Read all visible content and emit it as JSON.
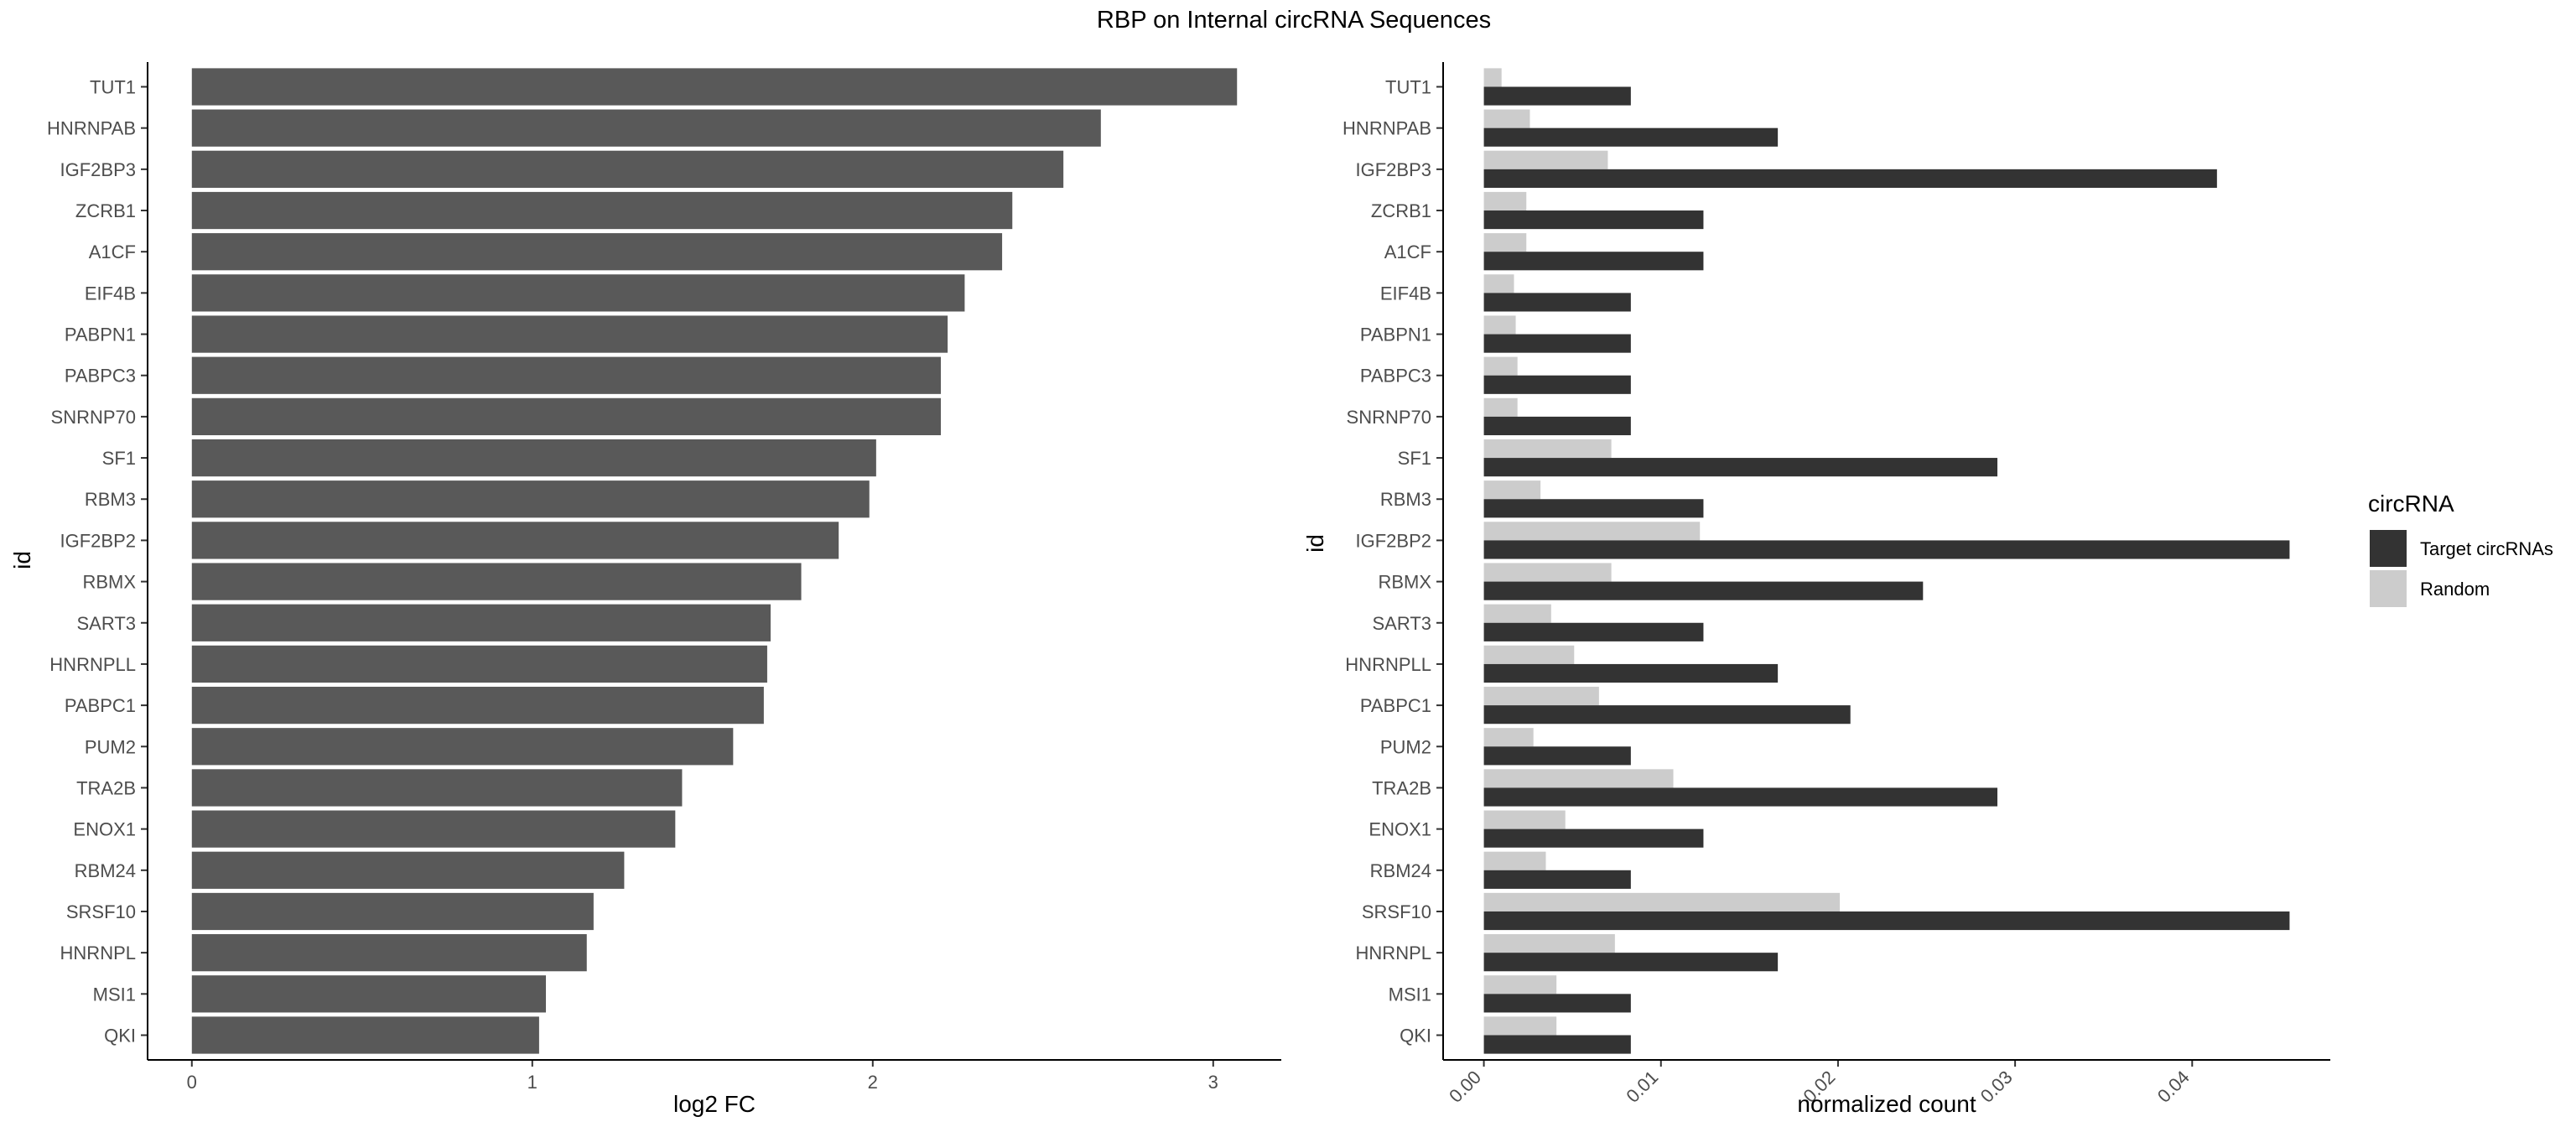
{
  "title": "RBP on Internal circRNA Sequences",
  "chart_data": [
    {
      "type": "bar",
      "orientation": "horizontal",
      "xlabel": "log2 FC",
      "ylabel": "id",
      "xlim": [
        -0.13,
        3.2
      ],
      "xticks": [
        0,
        1,
        2,
        3
      ],
      "grid": false,
      "bar_color": "#595959",
      "categories": [
        "TUT1",
        "HNRNPAB",
        "IGF2BP3",
        "ZCRB1",
        "A1CF",
        "EIF4B",
        "PABPN1",
        "PABPC3",
        "SNRNP70",
        "SF1",
        "RBM3",
        "IGF2BP2",
        "RBMX",
        "SART3",
        "HNRNPLL",
        "PABPC1",
        "PUM2",
        "TRA2B",
        "ENOX1",
        "RBM24",
        "SRSF10",
        "HNRNPL",
        "MSI1",
        "QKI"
      ],
      "values": [
        3.07,
        2.67,
        2.56,
        2.41,
        2.38,
        2.27,
        2.22,
        2.2,
        2.2,
        2.01,
        1.99,
        1.9,
        1.79,
        1.7,
        1.69,
        1.68,
        1.59,
        1.44,
        1.42,
        1.27,
        1.18,
        1.16,
        1.04,
        1.02
      ]
    },
    {
      "type": "bar",
      "orientation": "horizontal",
      "grouped": true,
      "xlabel": "normalized count",
      "ylabel": "id",
      "xlim": [
        -0.0023,
        0.0478
      ],
      "xticks": [
        "0.00",
        "0.01",
        "0.02",
        "0.03",
        "0.04"
      ],
      "grid": false,
      "legend_title": "circRNA",
      "legend_position": "right",
      "categories": [
        "TUT1",
        "HNRNPAB",
        "IGF2BP3",
        "ZCRB1",
        "A1CF",
        "EIF4B",
        "PABPN1",
        "PABPC3",
        "SNRNP70",
        "SF1",
        "RBM3",
        "IGF2BP2",
        "RBMX",
        "SART3",
        "HNRNPLL",
        "PABPC1",
        "PUM2",
        "TRA2B",
        "ENOX1",
        "RBM24",
        "SRSF10",
        "HNRNPL",
        "MSI1",
        "QKI"
      ],
      "series": [
        {
          "name": "Target circRNAs",
          "color": "#333333",
          "values": [
            0.0083,
            0.0166,
            0.0414,
            0.0124,
            0.0124,
            0.0083,
            0.0083,
            0.0083,
            0.0083,
            0.029,
            0.0124,
            0.0455,
            0.0248,
            0.0124,
            0.0166,
            0.0207,
            0.0083,
            0.029,
            0.0124,
            0.0083,
            0.0455,
            0.0166,
            0.0083,
            0.0083
          ]
        },
        {
          "name": "Random",
          "color": "#cccccc",
          "values": [
            0.001,
            0.0026,
            0.007,
            0.0024,
            0.0024,
            0.0017,
            0.0018,
            0.0019,
            0.0019,
            0.0072,
            0.0032,
            0.0122,
            0.0072,
            0.0038,
            0.0051,
            0.0065,
            0.0028,
            0.0107,
            0.0046,
            0.0035,
            0.0201,
            0.0074,
            0.0041,
            0.0041
          ]
        }
      ]
    }
  ]
}
